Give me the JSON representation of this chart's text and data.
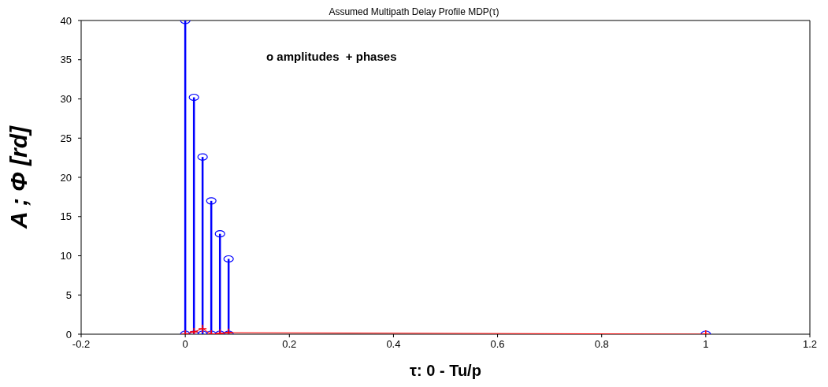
{
  "chart_data": {
    "type": "lollipop",
    "title": "Assumed Multipath Delay Profile MDP(τ)",
    "xlabel": "τ: 0 - Tu/p",
    "ylabel": "A ; Φ [rd]",
    "annotations": [
      "o amplitudes  + phases"
    ],
    "series": [
      {
        "color": "#0000ff",
        "marker": "circle",
        "x": [
          0,
          0.0167,
          0.0333,
          0.05,
          0.0667,
          0.0833,
          1
        ],
        "values": [
          40,
          30.2,
          22.6,
          17,
          12.8,
          9.6,
          0
        ]
      },
      {
        "type": "scatter",
        "color": "#0000ff",
        "marker": "circle",
        "x": [
          0,
          0.0167,
          0.0333,
          0.05,
          0.0667,
          0.0833
        ],
        "values": [
          0,
          0,
          0,
          0,
          0,
          0
        ]
      },
      {
        "type": "line",
        "color": "#ff0000",
        "marker": "cross",
        "line_style": "solid",
        "x": [
          0,
          0.0167,
          0.0333,
          0.05,
          0.0667,
          0.0833,
          1
        ],
        "values": [
          0,
          0.3,
          0.7,
          0,
          0.1,
          0.2,
          0
        ]
      }
    ],
    "xlim": [
      -0.2,
      1.2
    ],
    "xticks": [
      -0.2,
      0,
      0.2,
      0.4,
      0.6,
      0.8,
      1,
      1.2
    ],
    "ylim": [
      0,
      40
    ],
    "yticks": [
      0,
      5,
      10,
      15,
      20,
      25,
      30,
      35,
      40
    ]
  }
}
